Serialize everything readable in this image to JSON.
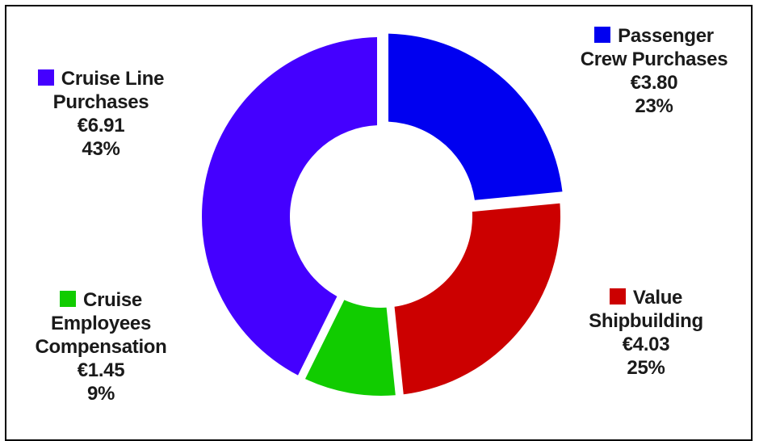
{
  "chart_data": {
    "type": "pie",
    "donut": true,
    "slices": [
      {
        "name": "Passenger Crew Purchases",
        "label_lines": [
          "Passenger",
          "Crew Purchases"
        ],
        "value": 3.8,
        "value_label": "€3.80",
        "percent": 23,
        "percent_label": "23%",
        "color": "#0000f0"
      },
      {
        "name": "Value Shipbuilding",
        "label_lines": [
          "Value",
          "Shipbuilding"
        ],
        "value": 4.03,
        "value_label": "€4.03",
        "percent": 25,
        "percent_label": "25%",
        "color": "#cc0000"
      },
      {
        "name": "Cruise Employees Compensation",
        "label_lines": [
          "Cruise",
          "Employees",
          "Compensation"
        ],
        "value": 1.45,
        "value_label": "€1.45",
        "percent": 9,
        "percent_label": "9%",
        "color": "#11cc00"
      },
      {
        "name": "Cruise Line Purchases",
        "label_lines": [
          "Cruise Line",
          "Purchases"
        ],
        "value": 6.91,
        "value_label": "€6.91",
        "percent": 43,
        "percent_label": "43%",
        "color": "#4400ff"
      }
    ]
  }
}
